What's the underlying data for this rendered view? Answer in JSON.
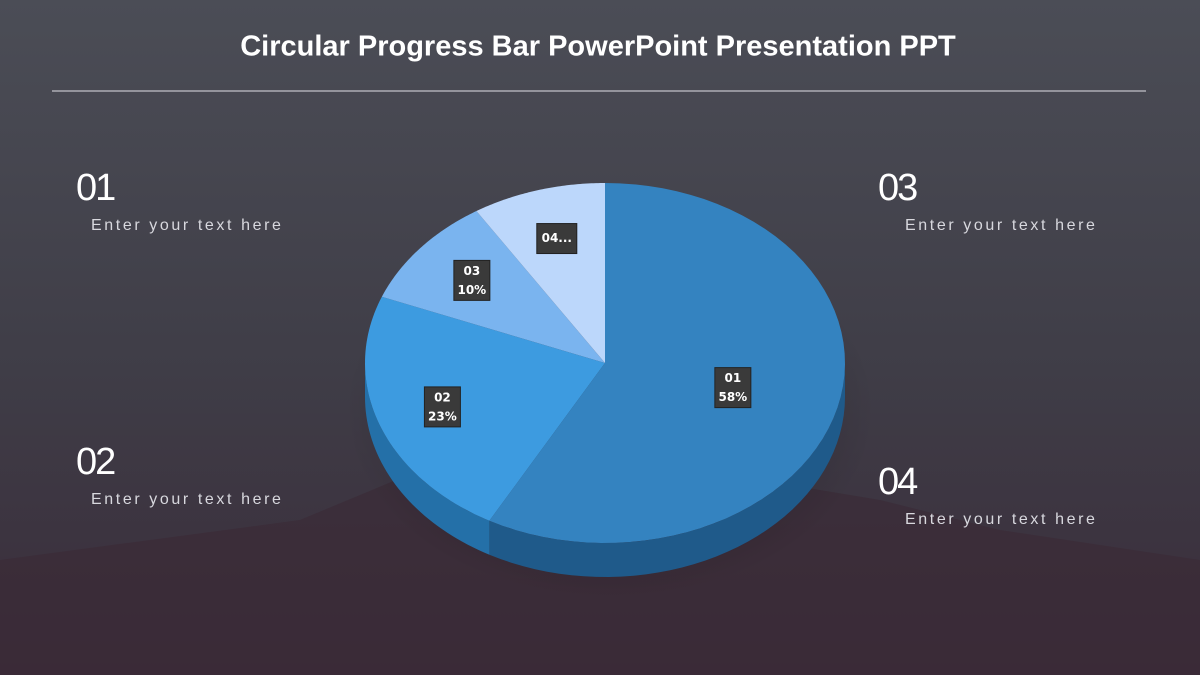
{
  "chart_data": {
    "type": "pie",
    "title": "Circular Progress Bar PowerPoint Presentation PPT",
    "categories": [
      "01",
      "02",
      "03",
      "04"
    ],
    "values": [
      58,
      23,
      10,
      9
    ],
    "value_labels": [
      "58%",
      "23%",
      "10%",
      null
    ],
    "data_label_names": [
      "01",
      "02",
      "03",
      "04..."
    ],
    "colors": [
      "#3483c0",
      "#3d9be0",
      "#7ab4ef",
      "#bcd7fb"
    ],
    "side_colors": [
      "#1f5a8a",
      "#2470a8",
      "#4a86c0",
      "#8aa8cc"
    ]
  },
  "items": [
    {
      "number": "01",
      "text": "Enter your text here"
    },
    {
      "number": "02",
      "text": "Enter your text here"
    },
    {
      "number": "03",
      "text": "Enter your text here"
    },
    {
      "number": "04",
      "text": "Enter your text here"
    }
  ]
}
